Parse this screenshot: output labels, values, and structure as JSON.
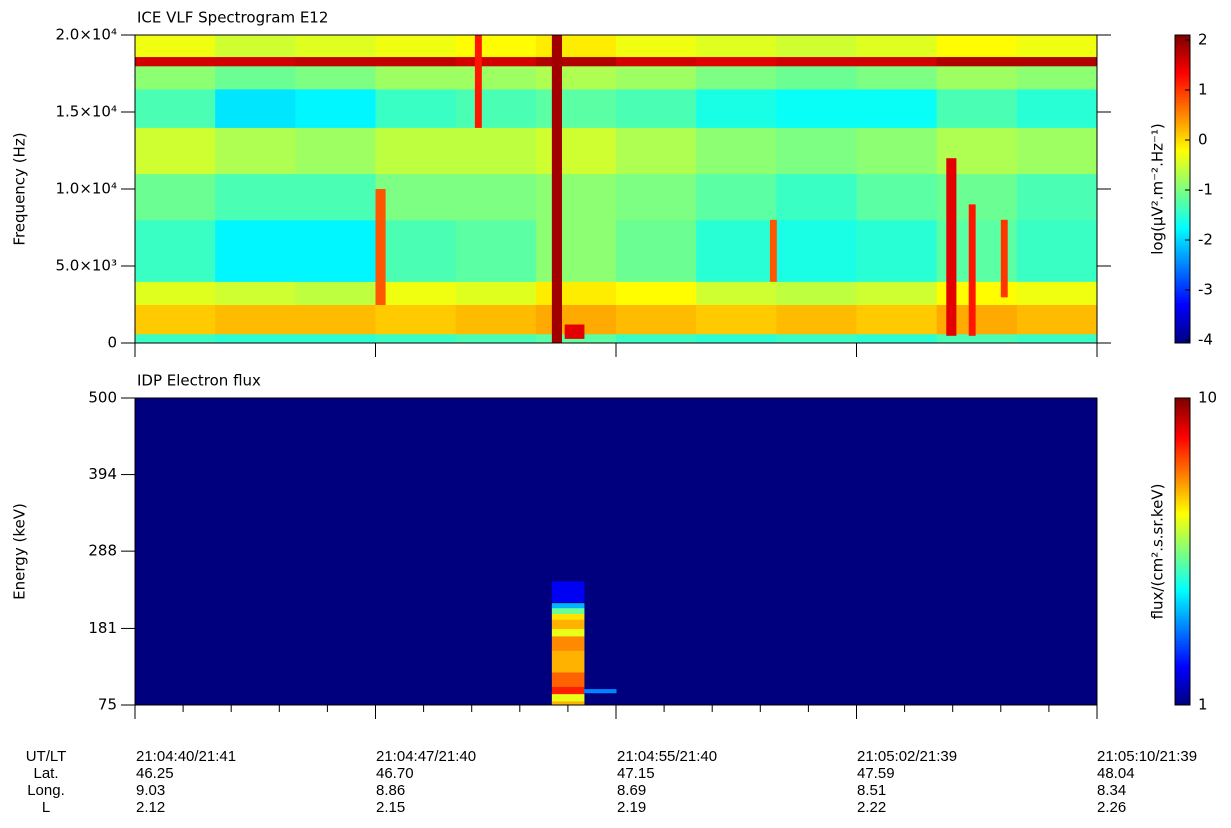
{
  "chart_data": [
    {
      "type": "heatmap",
      "title": "ICE VLF Spectrogram E12",
      "ylabel": "Frequency (Hz)",
      "zlabel": "log(μV².m⁻².Hz⁻¹)",
      "xlim": [
        0,
        30
      ],
      "xticks": [
        0,
        7.5,
        15,
        22.5,
        30
      ],
      "ylim": [
        0,
        20000
      ],
      "yticks": [
        0,
        {
          "value": 5000,
          "label": "5.0×10³"
        },
        {
          "value": 10000,
          "label": "1.0×10⁴"
        },
        {
          "value": 15000,
          "label": "1.5×10⁴"
        },
        {
          "value": 20000,
          "label": "2.0×10⁴"
        }
      ],
      "zlim": [
        -4.06,
        2.1
      ],
      "zticks": [
        -4,
        -3,
        -2,
        -1,
        0,
        1,
        2
      ],
      "x_edges": [
        0,
        2.5,
        5,
        7.5,
        10,
        12.5,
        15,
        17.5,
        20,
        22.5,
        25,
        27.5,
        30
      ],
      "y_edges": [
        0,
        600,
        2500,
        4000,
        8000,
        11000,
        14000,
        16500,
        18000,
        18600,
        20000
      ],
      "values": [
        [
          -1.4,
          -1.5,
          -1.5,
          -1.4,
          -1.3,
          -1.2,
          -1.4,
          -1.5,
          -1.4,
          -1.5,
          -1.3,
          -1.4
        ],
        [
          0.1,
          0.2,
          0.2,
          0.1,
          0.2,
          0.3,
          0.2,
          0.1,
          0.2,
          0.1,
          0.3,
          0.2
        ],
        [
          -0.4,
          -0.5,
          -0.6,
          -0.3,
          -0.4,
          -0.1,
          -0.2,
          -0.5,
          -0.6,
          -0.5,
          -0.2,
          -0.3
        ],
        [
          -1.4,
          -1.8,
          -1.8,
          -1.3,
          -1.2,
          -0.9,
          -1.1,
          -1.5,
          -1.6,
          -1.5,
          -1.2,
          -1.4
        ],
        [
          -1.1,
          -1.3,
          -1.3,
          -1.0,
          -1.0,
          -0.9,
          -1.0,
          -1.2,
          -1.4,
          -1.2,
          -1.1,
          -1.3
        ],
        [
          -0.5,
          -0.7,
          -0.8,
          -0.6,
          -0.6,
          -0.5,
          -0.7,
          -0.9,
          -1.0,
          -0.9,
          -0.7,
          -0.8
        ],
        [
          -1.3,
          -1.9,
          -1.8,
          -1.4,
          -1.3,
          -1.2,
          -1.3,
          -1.6,
          -1.7,
          -1.7,
          -1.3,
          -1.5
        ],
        [
          -0.9,
          -1.1,
          -1.0,
          -0.8,
          -0.8,
          -0.7,
          -0.8,
          -1.0,
          -1.1,
          -1.0,
          -0.8,
          -0.9
        ],
        [
          1.6,
          1.6,
          1.7,
          1.7,
          1.6,
          1.8,
          1.6,
          1.5,
          1.6,
          1.6,
          1.8,
          1.8
        ],
        [
          -0.3,
          -0.5,
          -0.4,
          -0.3,
          -0.2,
          -0.1,
          -0.3,
          -0.4,
          -0.5,
          -0.4,
          -0.2,
          -0.3
        ]
      ],
      "cells": [
        {
          "x": [
            13.0,
            13.3
          ],
          "y": [
            0,
            20000
          ],
          "value": 1.9
        },
        {
          "x": [
            7.5,
            7.8
          ],
          "y": [
            2500,
            10000
          ],
          "value": 0.8
        },
        {
          "x": [
            10.6,
            10.8
          ],
          "y": [
            14000,
            20000
          ],
          "value": 1.2
        },
        {
          "x": [
            19.8,
            20.0
          ],
          "y": [
            4000,
            8000
          ],
          "value": 0.8
        },
        {
          "x": [
            25.3,
            25.6
          ],
          "y": [
            500,
            12000
          ],
          "value": 1.5
        },
        {
          "x": [
            26.0,
            26.2
          ],
          "y": [
            500,
            9000
          ],
          "value": 1.2
        },
        {
          "x": [
            27.0,
            27.2
          ],
          "y": [
            3000,
            8000
          ],
          "value": 1.0
        },
        {
          "x": [
            13.4,
            14.0
          ],
          "y": [
            300,
            1200
          ],
          "value": 1.5
        }
      ]
    },
    {
      "type": "heatmap",
      "title": "IDP Electron flux",
      "ylabel": "Energy (keV)",
      "zlabel": "flux/(cm².s.sr.keV)",
      "xlim": [
        0,
        30
      ],
      "xticks": [
        0,
        7.5,
        15,
        22.5,
        30
      ],
      "ylim": [
        75,
        500
      ],
      "yticks": [
        75,
        181,
        288,
        394,
        500
      ],
      "zlim": [
        1,
        10
      ],
      "zticks": [
        1,
        10
      ],
      "zlog": true,
      "background": 1,
      "cells": [
        {
          "x": [
            13.0,
            14.0
          ],
          "y": [
            218,
            246
          ],
          "value": 1.3
        },
        {
          "x": [
            13.0,
            14.0
          ],
          "y": [
            209,
            216
          ],
          "value": 2
        },
        {
          "x": [
            13.0,
            14.0
          ],
          "y": [
            201,
            209
          ],
          "value": 3
        },
        {
          "x": [
            13.0,
            14.0
          ],
          "y": [
            193,
            201
          ],
          "value": 4.5
        },
        {
          "x": [
            13.0,
            14.0
          ],
          "y": [
            180,
            193
          ],
          "value": 5
        },
        {
          "x": [
            13.0,
            14.0
          ],
          "y": [
            170,
            180
          ],
          "value": 4
        },
        {
          "x": [
            13.0,
            14.0
          ],
          "y": [
            150,
            170
          ],
          "value": 5.5
        },
        {
          "x": [
            13.0,
            14.0
          ],
          "y": [
            120,
            150
          ],
          "value": 5
        },
        {
          "x": [
            13.0,
            14.0
          ],
          "y": [
            100,
            120
          ],
          "value": 6
        },
        {
          "x": [
            13.0,
            14.0
          ],
          "y": [
            90,
            100
          ],
          "value": 7
        },
        {
          "x": [
            13.0,
            14.0
          ],
          "y": [
            80,
            90
          ],
          "value": 4
        },
        {
          "x": [
            13.0,
            14.0
          ],
          "y": [
            75,
            80
          ],
          "value": 5
        },
        {
          "x": [
            14.0,
            15.0
          ],
          "y": [
            92,
            97
          ],
          "value": 1.8
        }
      ]
    }
  ],
  "colormap": [
    "#00007f",
    "#0000ff",
    "#007fff",
    "#00ffff",
    "#7fff7f",
    "#ffff00",
    "#ff7f00",
    "#ff0000",
    "#7f0000"
  ],
  "ephemeris": {
    "labels": [
      "UT/LT",
      "Lat.",
      "Long.",
      "L"
    ],
    "rows": [
      [
        "21:04:40/21:41",
        "21:04:47/21:40",
        "21:04:55/21:40",
        "21:05:02/21:39",
        "21:05:10/21:39"
      ],
      [
        "46.25",
        "46.70",
        "47.15",
        "47.59",
        "48.04"
      ],
      [
        "9.03",
        "8.86",
        "8.69",
        "8.51",
        "8.34"
      ],
      [
        "2.12",
        "2.15",
        "2.19",
        "2.22",
        "2.26"
      ]
    ]
  }
}
